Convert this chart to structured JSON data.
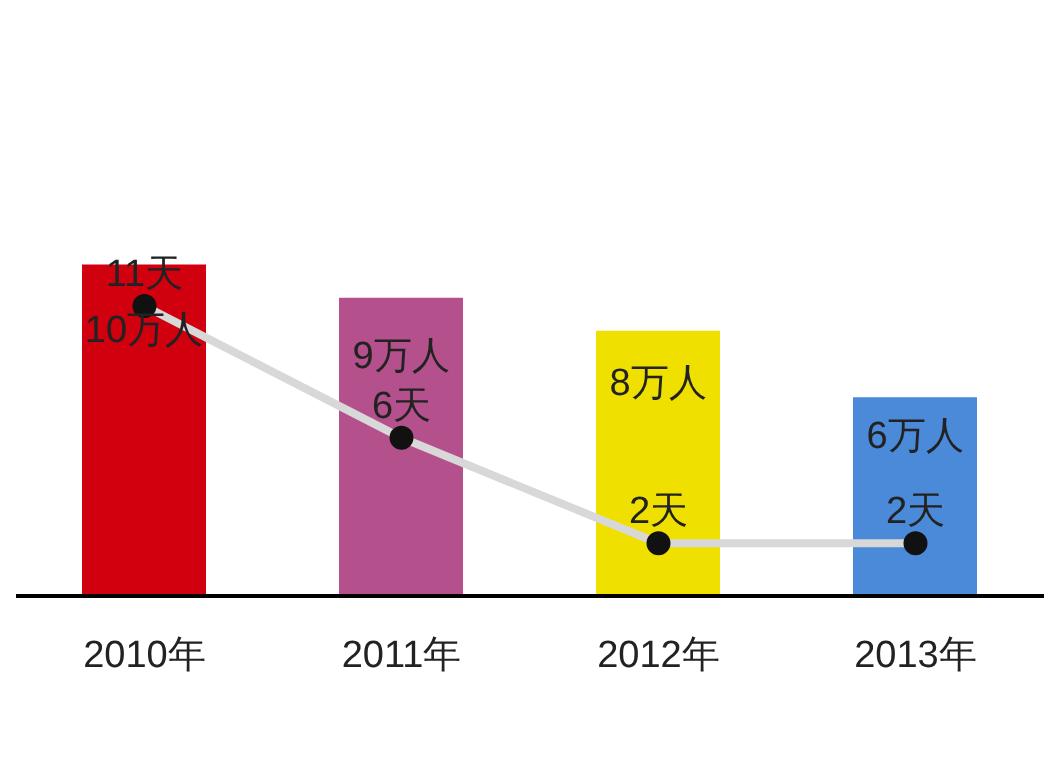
{
  "chart_data": {
    "type": "bar",
    "categories": [
      "2010年",
      "2011年",
      "2012年",
      "2013年"
    ],
    "series": [
      {
        "colors": [
          "#d0000f",
          "#b4508c",
          "#f0e000",
          "#4a8ad8"
        ],
        "values": [
          10,
          9,
          8,
          6
        ],
        "value_labels": [
          "10万人",
          "9万人",
          "8万人",
          "6万人"
        ]
      },
      {
        "type": "line",
        "axis": "y2",
        "color": "#d8d8d8",
        "marker": "circle",
        "values": [
          11,
          6,
          2,
          2
        ],
        "value_labels": [
          "11天",
          "6天",
          "2天",
          "2天"
        ]
      }
    ],
    "legend": false
  }
}
